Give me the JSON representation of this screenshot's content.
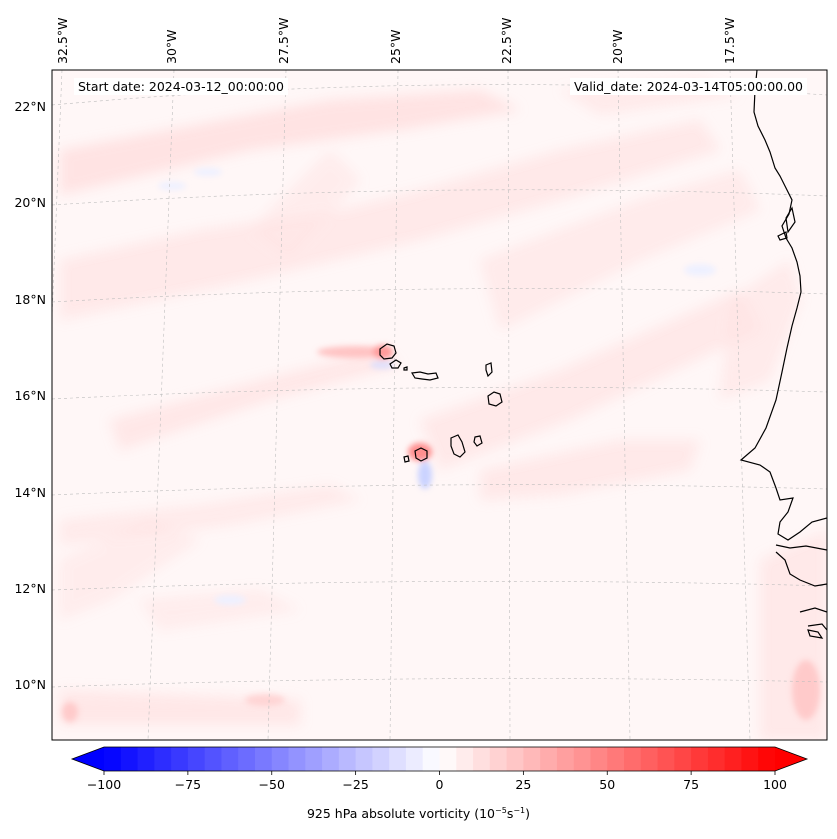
{
  "map": {
    "projection": "Lambert conformal",
    "start_label": "Start date: 2024-03-12_00:00:00",
    "valid_label": "Valid_date: 2024-03-14T05:00:00.00",
    "lon_labels": [
      "32.5°W",
      "30°W",
      "27.5°W",
      "25°W",
      "22.5°W",
      "20°W",
      "17.5°W"
    ],
    "lat_labels": [
      "22°N",
      "20°N",
      "18°N",
      "16°N",
      "14°N",
      "12°N",
      "10°N"
    ],
    "grid": true,
    "coastline_color": "#000000",
    "islands": [
      "Santo Antão",
      "São Vicente",
      "Santa Luzia",
      "São Nicolau",
      "Sal",
      "Boa Vista",
      "Maio",
      "Santiago",
      "Fogo",
      "Brava"
    ]
  },
  "colorbar": {
    "title_prefix": "925 hPa absolute vorticity (10",
    "title_exp1": "−5",
    "title_mid": "s",
    "title_exp2": "−1",
    "title_suffix": ")",
    "min": -100,
    "max": 100,
    "levels": 41,
    "extend": "both",
    "tick_labels": [
      "−100",
      "−75",
      "−50",
      "−25",
      "0",
      "25",
      "50",
      "75",
      "100"
    ],
    "colors": {
      "negative": "#0000ff",
      "zero": "#ffffff",
      "positive": "#ff0000"
    }
  }
}
